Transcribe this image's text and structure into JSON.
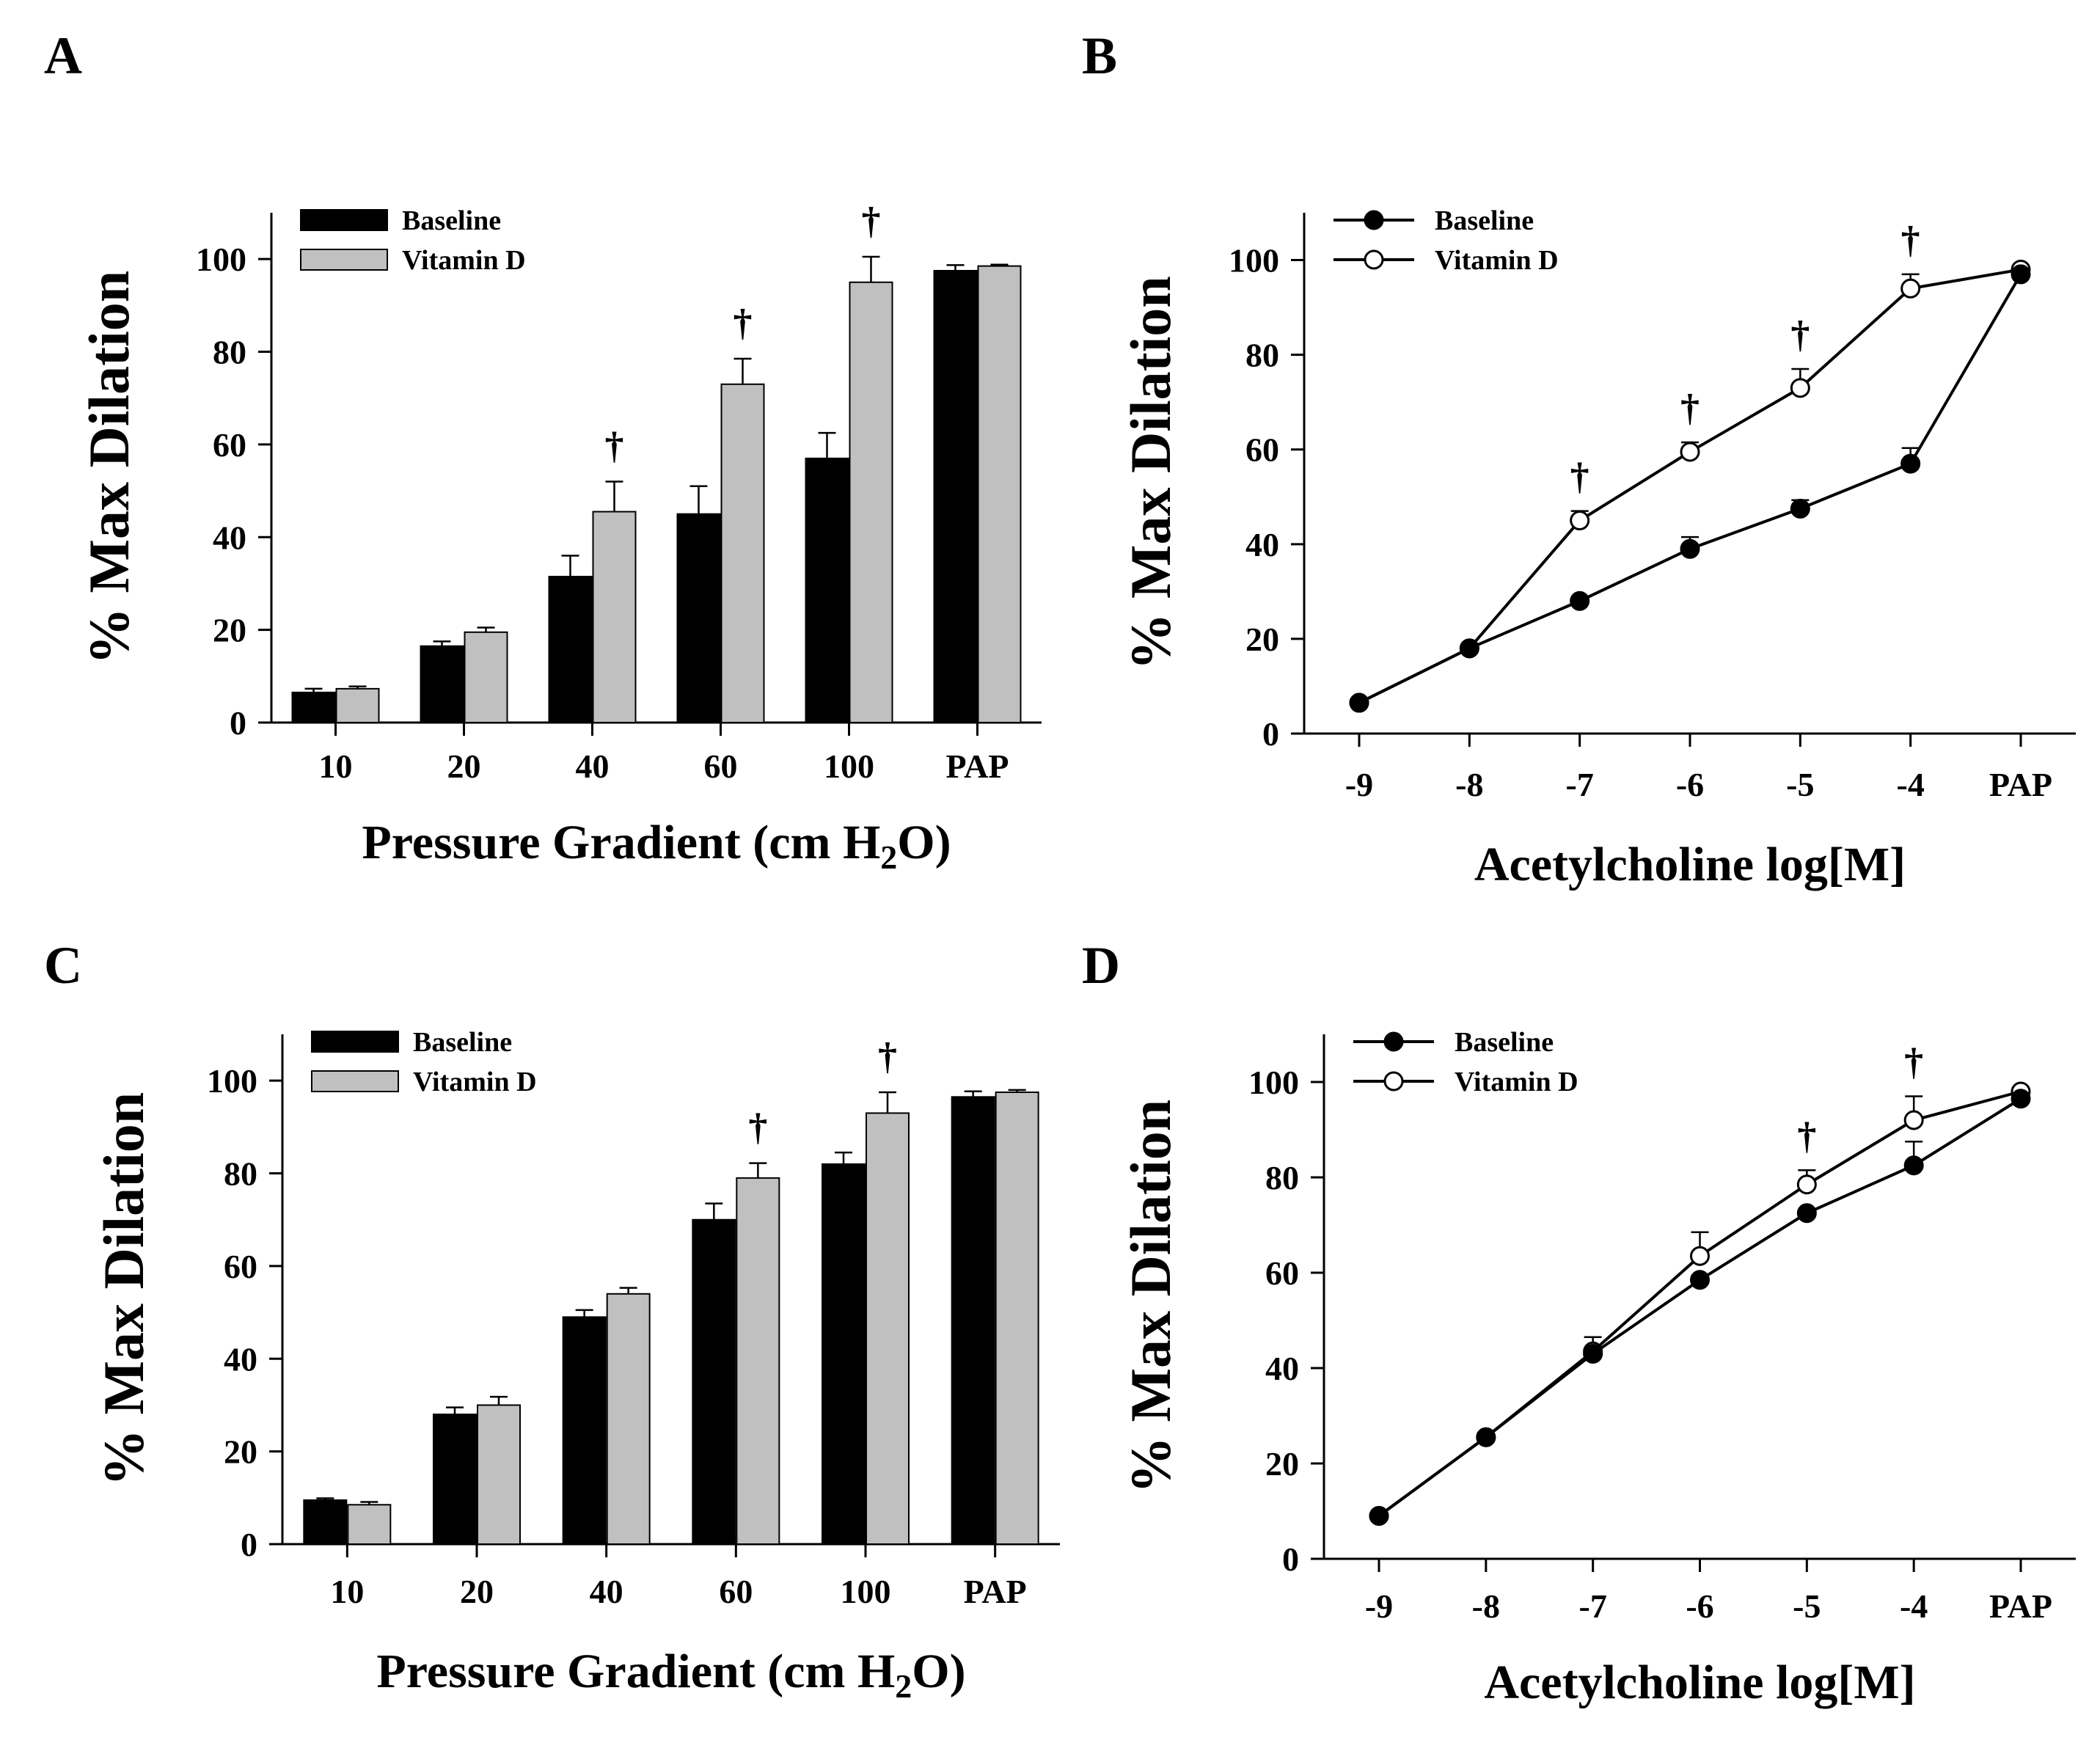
{
  "figure": {
    "panels": [
      "A",
      "B",
      "C",
      "D"
    ]
  },
  "chart_data": [
    {
      "panel": "A",
      "type": "bar",
      "title": "",
      "xlabel": "Pressure Gradient (cm H2O)",
      "ylabel": "% Max Dilation",
      "categories": [
        "10",
        "20",
        "40",
        "60",
        "100",
        "PAP"
      ],
      "ylim": [
        0,
        110
      ],
      "yticks": [
        0,
        20,
        40,
        60,
        80,
        100
      ],
      "legend": "top-left",
      "series": [
        {
          "name": "Baseline",
          "color": "#000000",
          "values": [
            6.5,
            16.5,
            31.5,
            45,
            57,
            97.5
          ],
          "errors": [
            0.8,
            1.0,
            4.5,
            6,
            5.5,
            1.2
          ]
        },
        {
          "name": "Vitamin D",
          "color": "#c0c0c0",
          "values": [
            7.3,
            19.5,
            45.5,
            73,
            95,
            98.5
          ],
          "errors": [
            0.5,
            1.0,
            6.5,
            5.5,
            5.5,
            0.3
          ]
        }
      ],
      "significance": [
        {
          "category": "40",
          "series": "Vitamin D",
          "mark": "†"
        },
        {
          "category": "60",
          "series": "Vitamin D",
          "mark": "†"
        },
        {
          "category": "100",
          "series": "Vitamin D",
          "mark": "†"
        }
      ]
    },
    {
      "panel": "B",
      "type": "line",
      "title": "",
      "xlabel": "Acetylcholine log[M]",
      "ylabel": "% Max Dilation",
      "categories": [
        "-9",
        "-8",
        "-7",
        "-6",
        "-5",
        "-4",
        "PAP"
      ],
      "ylim": [
        0,
        110
      ],
      "yticks": [
        0,
        20,
        40,
        60,
        80,
        100
      ],
      "legend": "top-left",
      "series": [
        {
          "name": "Baseline",
          "marker": "filled-circle",
          "values": [
            6.5,
            18,
            28,
            39,
            47.5,
            57,
            97
          ],
          "errors": [
            0,
            0,
            0,
            2.5,
            1.8,
            3.3,
            0
          ]
        },
        {
          "name": "Vitamin D",
          "marker": "open-circle",
          "values": [
            6.5,
            18,
            45,
            59.5,
            73,
            94,
            98
          ],
          "errors": [
            0,
            0,
            2,
            2,
            4,
            3,
            0
          ]
        }
      ],
      "significance": [
        {
          "category": "-7",
          "series": "Vitamin D",
          "mark": "†"
        },
        {
          "category": "-6",
          "series": "Vitamin D",
          "mark": "†"
        },
        {
          "category": "-5",
          "series": "Vitamin D",
          "mark": "†"
        },
        {
          "category": "-4",
          "series": "Vitamin D",
          "mark": "†"
        }
      ]
    },
    {
      "panel": "C",
      "type": "bar",
      "title": "",
      "xlabel": "Pressure Gradient (cm H2O)",
      "ylabel": "% Max Dilation",
      "categories": [
        "10",
        "20",
        "40",
        "60",
        "100",
        "PAP"
      ],
      "ylim": [
        0,
        110
      ],
      "yticks": [
        0,
        20,
        40,
        60,
        80,
        100
      ],
      "legend": "top-left",
      "series": [
        {
          "name": "Baseline",
          "color": "#000000",
          "values": [
            9.5,
            28,
            49,
            70,
            82,
            96.5
          ],
          "errors": [
            0.4,
            1.5,
            1.5,
            3.5,
            2.5,
            1.2
          ]
        },
        {
          "name": "Vitamin D",
          "color": "#c0c0c0",
          "values": [
            8.5,
            30,
            54,
            79,
            93,
            97.5
          ],
          "errors": [
            0.6,
            1.8,
            1.3,
            3.2,
            4.5,
            0.5
          ]
        }
      ],
      "significance": [
        {
          "category": "60",
          "series": "Vitamin D",
          "mark": "†"
        },
        {
          "category": "100",
          "series": "Vitamin D",
          "mark": "†"
        }
      ]
    },
    {
      "panel": "D",
      "type": "line",
      "title": "",
      "xlabel": "Acetylcholine log[M]",
      "ylabel": "% Max Dilation",
      "categories": [
        "-9",
        "-8",
        "-7",
        "-6",
        "-5",
        "-4",
        "PAP"
      ],
      "ylim": [
        0,
        110
      ],
      "yticks": [
        0,
        20,
        40,
        60,
        80,
        100
      ],
      "legend": "top-left",
      "series": [
        {
          "name": "Baseline",
          "marker": "filled-circle",
          "values": [
            9,
            25.5,
            43,
            58.5,
            72.5,
            82.5,
            96.5
          ],
          "errors": [
            0,
            0,
            0,
            0,
            0,
            5,
            0
          ]
        },
        {
          "name": "Vitamin D",
          "marker": "open-circle",
          "values": [
            9,
            25.5,
            43.5,
            63.5,
            78.5,
            92,
            98
          ],
          "errors": [
            0,
            0,
            3,
            5,
            3,
            5,
            0
          ]
        }
      ],
      "significance": [
        {
          "category": "-5",
          "series": "Vitamin D",
          "mark": "†"
        },
        {
          "category": "-4",
          "series": "Vitamin D",
          "mark": "†"
        }
      ]
    }
  ]
}
